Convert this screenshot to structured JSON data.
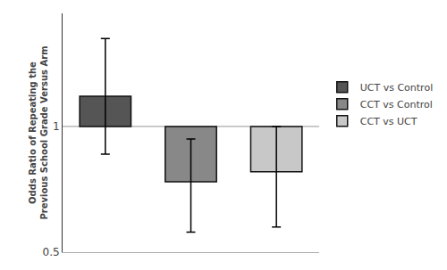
{
  "chart_data": {
    "type": "bar",
    "categories": [
      "UCT vs Control",
      "CCT vs Control",
      "CCT vs UCT"
    ],
    "values": [
      1.12,
      0.78,
      0.82
    ],
    "error_lower": [
      0.23,
      0.2,
      0.22
    ],
    "error_upper": [
      0.23,
      0.17,
      0.18
    ],
    "colors": [
      "#555555",
      "#888888",
      "#c8c8c8"
    ],
    "reference_line": 1.0,
    "ylabel": "Odds Ratio of Repeating the\nPrevious School Grade Versus Arm",
    "ylim": [
      0.5,
      1.45
    ],
    "yticks": [
      0.5,
      1.0
    ],
    "grid": false,
    "legend": "right",
    "tick_labels": "y"
  }
}
